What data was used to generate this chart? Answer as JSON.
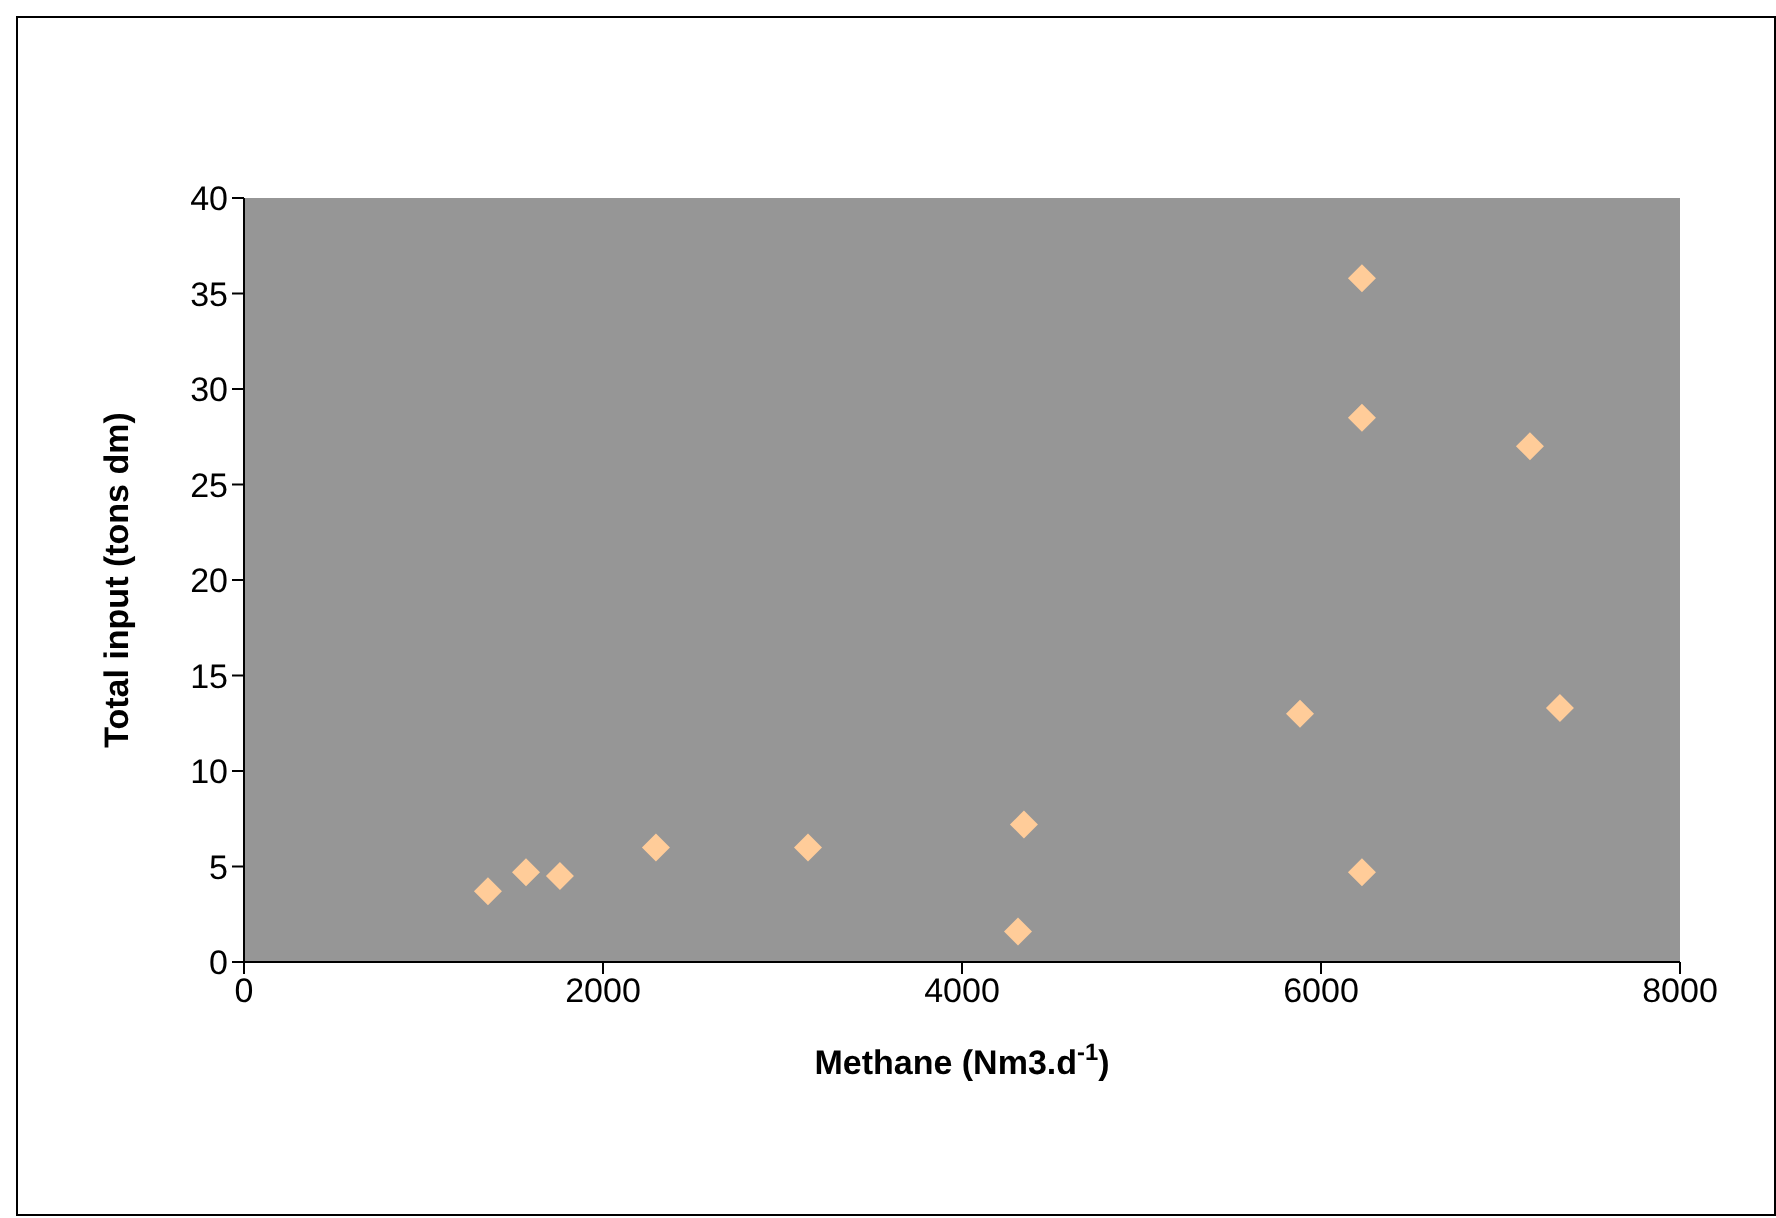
{
  "chart_data": {
    "type": "scatter",
    "xlabel": "Methane (Nm3.d$^{-1}$)",
    "ylabel": "Total input (tons dm)",
    "x": [
      1359,
      1571,
      1760,
      2295,
      3142,
      4312,
      4345,
      5883,
      6228,
      6228,
      6228,
      7164,
      7331
    ],
    "values": [
      3.7,
      4.7,
      4.5,
      6,
      6,
      1.6,
      7.2,
      13,
      28.5,
      35.8,
      4.7,
      27,
      13.3
    ],
    "color": "#ffcc99",
    "marker": "diamond",
    "xlim": [
      0,
      8000
    ],
    "xticks": [
      0,
      2000,
      4000,
      6000,
      8000
    ],
    "ylim": [
      0,
      40
    ],
    "yticks": [
      0,
      5,
      10,
      15,
      20,
      25,
      30,
      35,
      40
    ],
    "grid": false
  }
}
